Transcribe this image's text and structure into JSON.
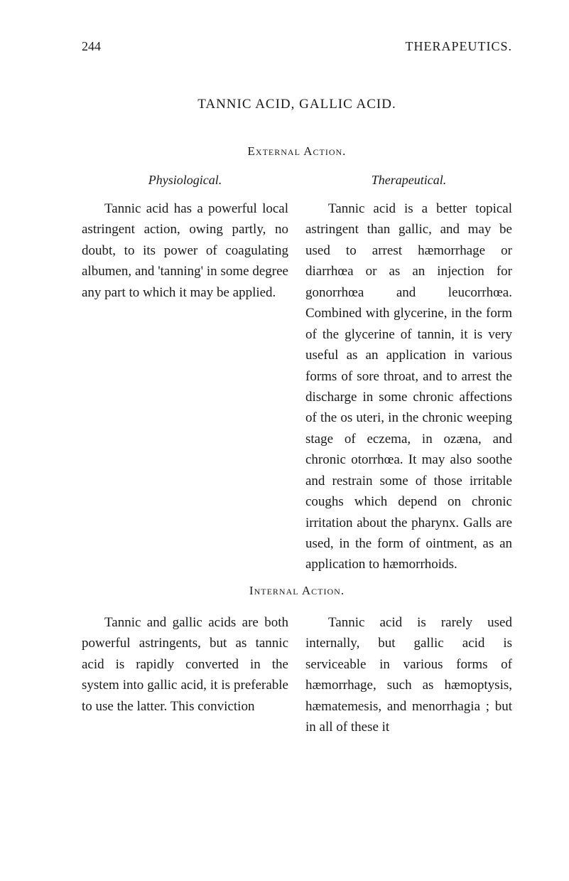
{
  "header": {
    "page_number": "244",
    "section": "THERAPEUTICS."
  },
  "main_title": "TANNIC ACID, GALLIC ACID.",
  "external": {
    "subtitle": "External Action.",
    "physiological": {
      "heading": "Physiological.",
      "text": "Tannic acid has a powerful local astringent action, owing partly, no doubt, to its power of coagulating albumen, and 'tanning' in some degree any part to which it may be applied."
    },
    "therapeutical": {
      "heading": "Therapeutical.",
      "text": "Tannic acid is a better topical astringent than gallic, and may be used to arrest hæmorrhage or diarrhœa or as an injection for gonorrhœa and leucorrhœa. Combined with glycerine, in the form of the glycerine of tannin, it is very useful as an application in various forms of sore throat, and to arrest the discharge in some chronic affections of the os uteri, in the chronic weeping stage of eczema, in ozæna, and chronic otorrhœa. It may also soothe and restrain some of those irritable coughs which depend on chronic irritation about the pharynx. Galls are used, in the form of ointment, as an application to hæmorrhoids."
    }
  },
  "internal": {
    "subtitle": "Internal Action.",
    "physiological": {
      "text": "Tannic and gallic acids are both powerful astringents, but as tannic acid is rapidly converted in the system into gallic acid, it is preferable to use the latter. This conviction"
    },
    "therapeutical": {
      "text": "Tannic acid is rarely used internally, but gallic acid is serviceable in various forms of hæmorrhage, such as hæmoptysis, hæmatemesis, and menorrhagia ; but in all of these it"
    }
  }
}
